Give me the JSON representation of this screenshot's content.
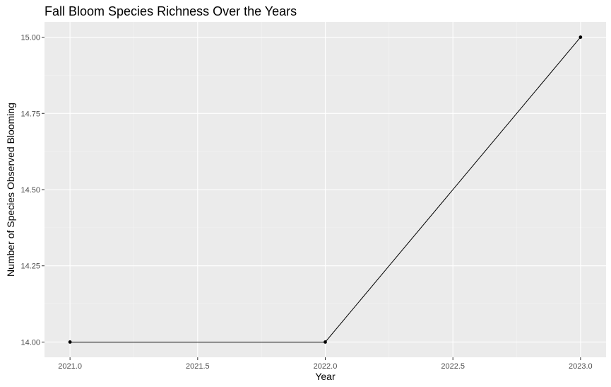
{
  "chart_data": {
    "type": "line",
    "title": "Fall Bloom Species Richness Over the Years",
    "xlabel": "Year",
    "ylabel": "Number of Species Observed Blooming",
    "x": [
      2021,
      2022,
      2023
    ],
    "series": [
      {
        "values": [
          14,
          14,
          15
        ]
      }
    ],
    "xlim": [
      2020.9,
      2023.1
    ],
    "ylim": [
      13.95,
      15.05
    ],
    "x_ticks": [
      2021.0,
      2021.5,
      2022.0,
      2022.5,
      2023.0
    ],
    "x_tick_labels": [
      "2021.0",
      "2021.5",
      "2022.0",
      "2022.5",
      "2023.0"
    ],
    "y_ticks": [
      14.0,
      14.25,
      14.5,
      14.75,
      15.0
    ],
    "y_tick_labels": [
      "14.00",
      "14.25",
      "14.50",
      "14.75",
      "15.00"
    ],
    "grid": true,
    "legend": "none",
    "colors": {
      "panel_background": "#ebebeb",
      "grid_major": "#ffffff",
      "grid_minor": "#f5f5f5",
      "line": "#000000",
      "point": "#000000",
      "tick_label": "#4d4d4d",
      "tick_mark": "#333333"
    }
  }
}
